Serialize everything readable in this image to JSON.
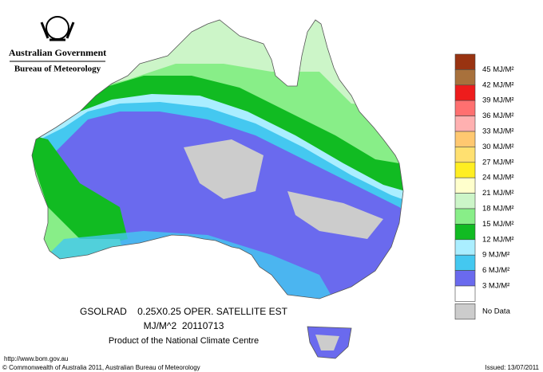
{
  "header": {
    "government": "Australian Government",
    "agency": "Bureau of Meteorology"
  },
  "product": {
    "line1": "GSOLRAD    0.25X0.25 OPER. SATELLITE EST",
    "line2": "MJ/M^2  20110713",
    "line3": "Product of the National Climate Centre"
  },
  "legend": {
    "boxes": [
      "#993311",
      "#a8713c",
      "#ee1c1c",
      "#ff7070",
      "#ffb0b0",
      "#ffc870",
      "#ffe070",
      "#ffee22",
      "#ffffcc",
      "#ccf5c8",
      "#88ee88",
      "#11bb22",
      "#aaeeff",
      "#44c8f0",
      "#6a6aee",
      "#ffffff"
    ],
    "labels": [
      "45 MJ/M²",
      "42 MJ/M²",
      "39 MJ/M²",
      "36 MJ/M²",
      "33 MJ/M²",
      "30 MJ/M²",
      "27 MJ/M²",
      "24 MJ/M²",
      "21 MJ/M²",
      "18 MJ/M²",
      "15 MJ/M²",
      "12 MJ/M²",
      "9 MJ/M²",
      "6 MJ/M²",
      "3 MJ/M²"
    ],
    "no_data": {
      "label": "No Data",
      "color": "#cccccc"
    }
  },
  "footer": {
    "url": "http://www.bom.gov.au",
    "copyright": "© Commonwealth of Australia 2011, Australian Bureau of Meteorology",
    "issued": "Issued: 13/07/2011"
  }
}
